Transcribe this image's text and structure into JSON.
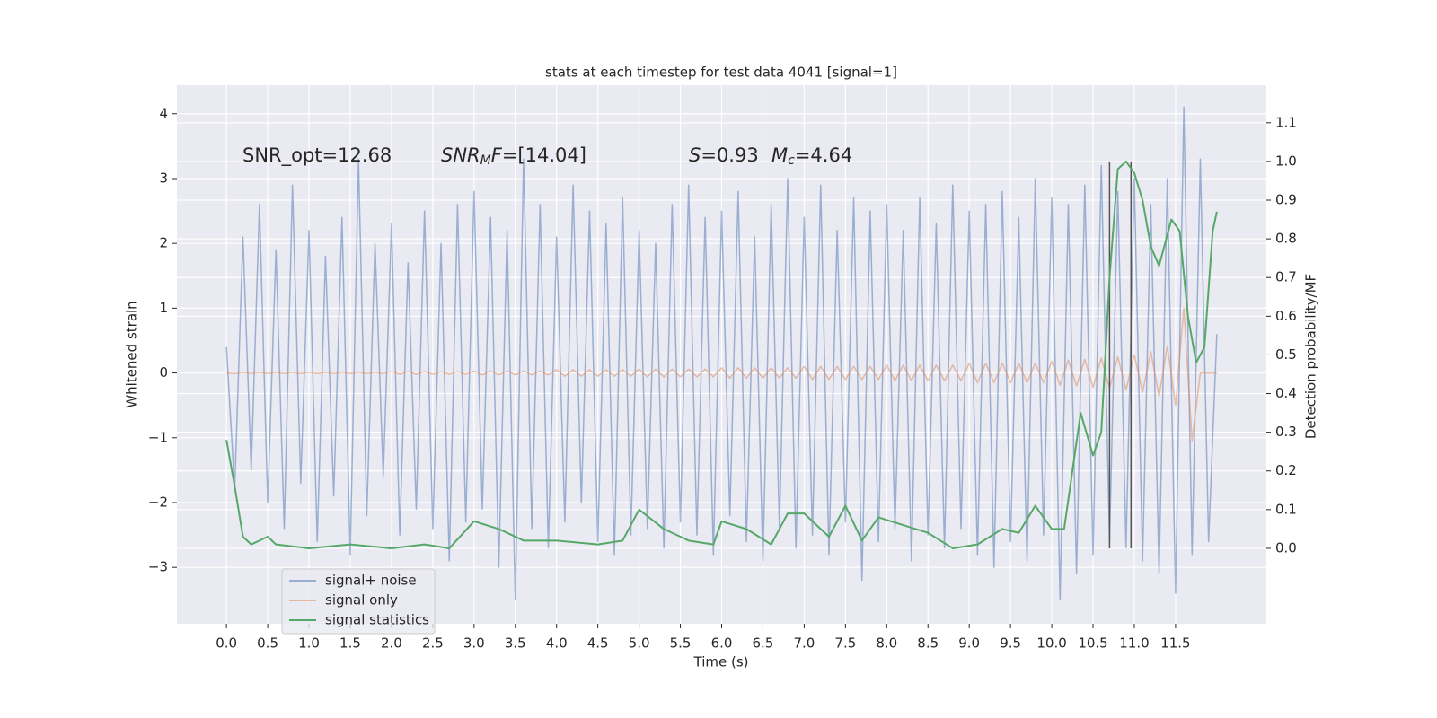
{
  "chart_data": {
    "type": "line",
    "title": "stats at each timestep for test data 4041 [signal=1]",
    "xlabel": "Time (s)",
    "ylabel": "Whitened strain",
    "y2label": "Detection probability/MF",
    "background": "#eaeaf2",
    "grid": true,
    "legend": "lower left",
    "xlim": [
      -0.6,
      12.6
    ],
    "ylim": [
      -3.87,
      4.44
    ],
    "y2lim": [
      -0.195,
      1.197
    ],
    "xticks": [
      {
        "value": 0,
        "label": "0.0"
      },
      0.5,
      {
        "value": 1,
        "label": "1.0"
      },
      1.5,
      {
        "value": 2,
        "label": "2.0"
      },
      2.5,
      {
        "value": 3,
        "label": "3.0"
      },
      3.5,
      {
        "value": 4,
        "label": "4.0"
      },
      4.5,
      {
        "value": 5,
        "label": "5.0"
      },
      5.5,
      {
        "value": 6,
        "label": "6.0"
      },
      6.5,
      {
        "value": 7,
        "label": "7.0"
      },
      7.5,
      {
        "value": 8,
        "label": "8.0"
      },
      8.5,
      {
        "value": 9,
        "label": "9.0"
      },
      9.5,
      {
        "value": 10,
        "label": "10.0"
      },
      10.5,
      {
        "value": 11,
        "label": "11.0"
      },
      11.5
    ],
    "yticks": [
      {
        "value": -3,
        "label": "−3"
      },
      {
        "value": -2,
        "label": "−2"
      },
      {
        "value": -1,
        "label": "−1"
      },
      0,
      1,
      2,
      3,
      4
    ],
    "y2ticks": [
      {
        "value": 0,
        "label": "0.0"
      },
      0.1,
      0.2,
      0.3,
      0.4,
      0.5,
      0.6,
      0.7,
      0.8,
      0.9,
      {
        "value": 1,
        "label": "1.0"
      },
      1.1
    ],
    "annotations": [
      [
        {
          "text": "SNR_opt=12.68",
          "style": "normal"
        }
      ],
      [
        {
          "text": "SNR",
          "style": "italic"
        },
        {
          "text": "M",
          "style": "italic-sub"
        },
        {
          "text": "F",
          "style": "italic"
        },
        {
          "text": "=[14.04]",
          "style": "normal"
        }
      ],
      [
        {
          "text": "S",
          "style": "italic"
        },
        {
          "text": "=0.93",
          "style": "normal"
        }
      ],
      [
        {
          "text": "M",
          "style": "italic"
        },
        {
          "text": "c",
          "style": "italic-sub"
        },
        {
          "text": "=4.64",
          "style": "normal"
        }
      ]
    ],
    "vlines": {
      "x": [
        10.7,
        10.96
      ],
      "ymin": 0,
      "ymax": 1,
      "axis": "y2",
      "color": "#555555"
    },
    "series": [
      {
        "name": "signal+ noise",
        "color": "#4c72b0",
        "alpha": 0.5,
        "axis": "y",
        "x": [
          0,
          0.1,
          0.2,
          0.3,
          0.4,
          0.5,
          0.6,
          0.7,
          0.8,
          0.9,
          1,
          1.1,
          1.2,
          1.3,
          1.4,
          1.5,
          1.6,
          1.7,
          1.8,
          1.9,
          2,
          2.1,
          2.2,
          2.3,
          2.4,
          2.5,
          2.6,
          2.7,
          2.8,
          2.9,
          3,
          3.1,
          3.2,
          3.3,
          3.4,
          3.5,
          3.6,
          3.7,
          3.8,
          3.9,
          4,
          4.1,
          4.2,
          4.3,
          4.4,
          4.5,
          4.6,
          4.7,
          4.8,
          4.9,
          5,
          5.1,
          5.2,
          5.3,
          5.4,
          5.5,
          5.6,
          5.7,
          5.8,
          5.9,
          6,
          6.1,
          6.2,
          6.3,
          6.4,
          6.5,
          6.6,
          6.7,
          6.8,
          6.9,
          7,
          7.1,
          7.2,
          7.3,
          7.4,
          7.5,
          7.6,
          7.7,
          7.8,
          7.9,
          8,
          8.1,
          8.2,
          8.3,
          8.4,
          8.5,
          8.6,
          8.7,
          8.8,
          8.9,
          9,
          9.1,
          9.2,
          9.3,
          9.4,
          9.5,
          9.6,
          9.7,
          9.8,
          9.9,
          10,
          10.1,
          10.2,
          10.3,
          10.4,
          10.5,
          10.6,
          10.7,
          10.8,
          10.9,
          11,
          11.1,
          11.2,
          11.3,
          11.4,
          11.5,
          11.6,
          11.7,
          11.8,
          11.9,
          12
        ],
        "values": [
          0.4,
          -1.8,
          2.1,
          -1.5,
          2.6,
          -2.0,
          1.9,
          -2.4,
          2.9,
          -1.7,
          2.2,
          -2.6,
          1.8,
          -1.9,
          2.4,
          -2.8,
          3.3,
          -2.2,
          2.0,
          -1.6,
          2.3,
          -2.5,
          1.7,
          -2.1,
          2.5,
          -2.4,
          2.0,
          -2.9,
          2.6,
          -2.3,
          2.8,
          -2.1,
          2.4,
          -3.0,
          2.2,
          -3.5,
          3.3,
          -2.4,
          2.6,
          -2.7,
          2.1,
          -2.3,
          2.9,
          -2.0,
          2.5,
          -2.6,
          2.3,
          -2.8,
          2.7,
          -2.5,
          2.2,
          -2.4,
          2.0,
          -2.7,
          2.6,
          -2.3,
          2.9,
          -2.5,
          2.4,
          -2.8,
          2.5,
          -2.2,
          2.8,
          -2.6,
          2.1,
          -2.9,
          2.6,
          -2.4,
          3.0,
          -2.7,
          2.4,
          -2.5,
          2.9,
          -2.8,
          2.2,
          -2.3,
          2.7,
          -3.2,
          2.5,
          -2.6,
          2.6,
          -2.4,
          2.2,
          -2.9,
          2.7,
          -2.5,
          2.3,
          -2.7,
          2.9,
          -2.4,
          2.5,
          -2.8,
          2.6,
          -3.0,
          2.8,
          -2.6,
          2.4,
          -2.9,
          3.0,
          -2.5,
          2.7,
          -3.5,
          2.6,
          -3.1,
          2.9,
          -2.8,
          3.2,
          -2.6,
          2.8,
          -2.7,
          3.0,
          -2.9,
          2.6,
          -3.1,
          3.0,
          -3.4,
          4.1,
          -2.8,
          3.3,
          -2.6,
          0.6
        ]
      },
      {
        "name": "signal only",
        "color": "#dd8452",
        "alpha": 0.5,
        "axis": "y",
        "x": [
          0,
          0.1,
          0.2,
          0.3,
          0.4,
          0.5,
          0.6,
          0.7,
          0.8,
          0.9,
          1,
          1.1,
          1.2,
          1.3,
          1.4,
          1.5,
          1.6,
          1.7,
          1.8,
          1.9,
          2,
          2.1,
          2.2,
          2.3,
          2.4,
          2.5,
          2.6,
          2.7,
          2.8,
          2.9,
          3,
          3.1,
          3.2,
          3.3,
          3.4,
          3.5,
          3.6,
          3.7,
          3.8,
          3.9,
          4,
          4.1,
          4.2,
          4.3,
          4.4,
          4.5,
          4.6,
          4.7,
          4.8,
          4.9,
          5,
          5.1,
          5.2,
          5.3,
          5.4,
          5.5,
          5.6,
          5.7,
          5.8,
          5.9,
          6,
          6.1,
          6.2,
          6.3,
          6.4,
          6.5,
          6.6,
          6.7,
          6.8,
          6.9,
          7,
          7.1,
          7.2,
          7.3,
          7.4,
          7.5,
          7.6,
          7.7,
          7.8,
          7.9,
          8,
          8.1,
          8.2,
          8.3,
          8.4,
          8.5,
          8.6,
          8.7,
          8.8,
          8.9,
          9,
          9.1,
          9.2,
          9.3,
          9.4,
          9.5,
          9.6,
          9.7,
          9.8,
          9.9,
          10,
          10.1,
          10.2,
          10.3,
          10.4,
          10.5,
          10.6,
          10.7,
          10.8,
          10.9,
          11,
          11.1,
          11.2,
          11.3,
          11.4,
          11.5,
          11.6,
          11.7,
          11.8,
          11.9,
          12
        ],
        "values": [
          0,
          -0.01,
          0.01,
          -0.01,
          0.01,
          -0.01,
          0.01,
          -0.01,
          0.01,
          -0.01,
          0.01,
          -0.01,
          0.01,
          -0.01,
          0.01,
          -0.01,
          0.01,
          -0.01,
          0.01,
          -0.01,
          0.02,
          -0.02,
          0.02,
          -0.02,
          0.02,
          -0.02,
          0.02,
          -0.02,
          0.02,
          -0.02,
          0.03,
          -0.03,
          0.03,
          -0.03,
          0.03,
          -0.03,
          0.03,
          -0.03,
          0.03,
          -0.03,
          0.05,
          -0.05,
          0.05,
          -0.05,
          0.05,
          -0.05,
          0.05,
          -0.05,
          0.05,
          -0.05,
          0.06,
          -0.06,
          0.06,
          -0.06,
          0.06,
          -0.06,
          0.06,
          -0.06,
          0.06,
          -0.06,
          0.08,
          -0.08,
          0.08,
          -0.08,
          0.08,
          -0.08,
          0.08,
          -0.08,
          0.08,
          -0.08,
          0.1,
          -0.1,
          0.1,
          -0.1,
          0.1,
          -0.1,
          0.1,
          -0.1,
          0.1,
          -0.1,
          0.12,
          -0.12,
          0.12,
          -0.12,
          0.12,
          -0.12,
          0.12,
          -0.12,
          0.12,
          -0.12,
          0.15,
          -0.15,
          0.15,
          -0.15,
          0.15,
          -0.15,
          0.15,
          -0.15,
          0.15,
          -0.15,
          0.18,
          -0.19,
          0.2,
          -0.2,
          0.21,
          -0.22,
          0.23,
          -0.24,
          0.25,
          -0.26,
          0.28,
          -0.3,
          0.33,
          -0.36,
          0.42,
          -0.5,
          1.0,
          -1.05,
          0,
          0,
          0
        ]
      },
      {
        "name": "signal statistics",
        "color": "#55a868",
        "alpha": 1,
        "axis": "y2",
        "x": [
          0,
          0.1,
          0.2,
          0.3,
          0.5,
          0.6,
          1.0,
          1.5,
          2.0,
          2.4,
          2.7,
          3.0,
          3.3,
          3.6,
          4.0,
          4.5,
          4.8,
          5.0,
          5.3,
          5.6,
          5.9,
          6.0,
          6.3,
          6.6,
          6.8,
          7.0,
          7.3,
          7.5,
          7.7,
          7.9,
          8.2,
          8.5,
          8.8,
          9.1,
          9.4,
          9.6,
          9.8,
          10.0,
          10.15,
          10.25,
          10.35,
          10.5,
          10.6,
          10.7,
          10.8,
          10.9,
          11.0,
          11.1,
          11.2,
          11.3,
          11.45,
          11.55,
          11.65,
          11.75,
          11.85,
          11.95,
          12.0
        ],
        "values": [
          0.28,
          0.16,
          0.03,
          0.01,
          0.03,
          0.01,
          0.0,
          0.01,
          0.0,
          0.01,
          0.0,
          0.07,
          0.05,
          0.02,
          0.02,
          0.01,
          0.02,
          0.1,
          0.05,
          0.02,
          0.01,
          0.07,
          0.05,
          0.01,
          0.09,
          0.09,
          0.03,
          0.11,
          0.02,
          0.08,
          0.06,
          0.04,
          0.0,
          0.01,
          0.05,
          0.04,
          0.11,
          0.05,
          0.05,
          0.2,
          0.35,
          0.24,
          0.3,
          0.7,
          0.98,
          1.0,
          0.97,
          0.9,
          0.78,
          0.73,
          0.85,
          0.82,
          0.6,
          0.48,
          0.52,
          0.82,
          0.87
        ]
      }
    ]
  }
}
